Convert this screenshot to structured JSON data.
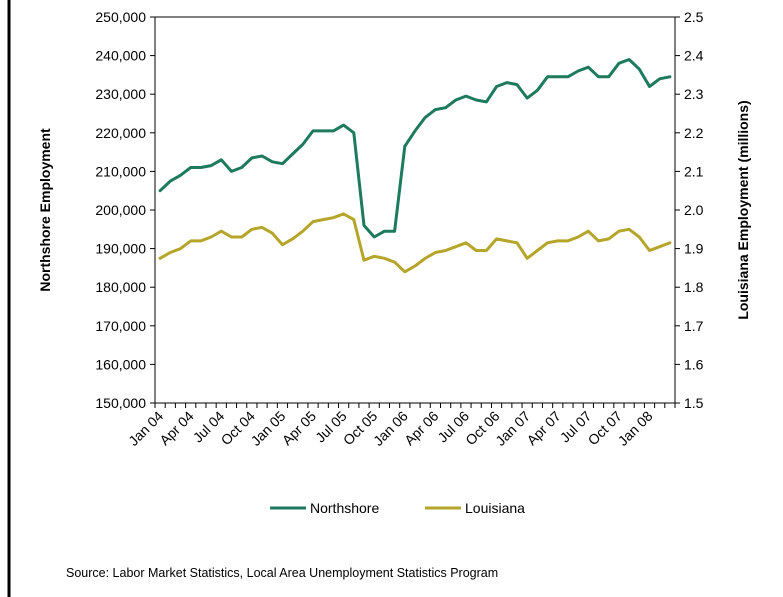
{
  "chart_data": {
    "type": "line",
    "x": [
      "Jan 04",
      "Feb 04",
      "Mar 04",
      "Apr 04",
      "May 04",
      "Jun 04",
      "Jul 04",
      "Aug 04",
      "Sep 04",
      "Oct 04",
      "Nov 04",
      "Dec 04",
      "Jan 05",
      "Feb 05",
      "Mar 05",
      "Apr 05",
      "May 05",
      "Jun 05",
      "Jul 05",
      "Aug 05",
      "Sep 05",
      "Oct 05",
      "Nov 05",
      "Dec 05",
      "Jan 06",
      "Feb 06",
      "Mar 06",
      "Apr 06",
      "May 06",
      "Jun 06",
      "Jul 06",
      "Aug 06",
      "Sep 06",
      "Oct 06",
      "Nov 06",
      "Dec 06",
      "Jan 07",
      "Feb 07",
      "Mar 07",
      "Apr 07",
      "May 07",
      "Jun 07",
      "Jul 07",
      "Aug 07",
      "Sep 07",
      "Oct 07",
      "Nov 07",
      "Dec 07",
      "Jan 08",
      "Feb 08",
      "Mar 08"
    ],
    "x_tick_labels": [
      "Jan 04",
      "Apr 04",
      "Jul 04",
      "Oct 04",
      "Jan 05",
      "Apr 05",
      "Jul 05",
      "Oct 05",
      "Jan 06",
      "Apr 06",
      "Jul 06",
      "Oct 06",
      "Jan 07",
      "Apr 07",
      "Jul 07",
      "Oct 07",
      "Jan 08"
    ],
    "series": [
      {
        "name": "Northshore",
        "axis": "left",
        "color": "#1d7a5c",
        "values": [
          205000,
          207500,
          209000,
          211000,
          211000,
          211500,
          213000,
          210000,
          211000,
          213500,
          214000,
          212500,
          212000,
          214500,
          217000,
          220500,
          220500,
          220500,
          222000,
          220000,
          196000,
          193000,
          194500,
          194500,
          216500,
          220500,
          224000,
          226000,
          226500,
          228500,
          229500,
          228500,
          228000,
          232000,
          233000,
          232500,
          229000,
          231000,
          234500,
          234500,
          234500,
          236000,
          237000,
          234500,
          234500,
          238000,
          239000,
          236500,
          232000,
          234000,
          234500
        ]
      },
      {
        "name": "Louisiana",
        "axis": "right",
        "color": "#b5a52a",
        "values": [
          1.875,
          1.89,
          1.9,
          1.92,
          1.92,
          1.93,
          1.945,
          1.93,
          1.93,
          1.95,
          1.955,
          1.94,
          1.91,
          1.925,
          1.945,
          1.97,
          1.975,
          1.98,
          1.99,
          1.975,
          1.87,
          1.88,
          1.875,
          1.865,
          1.84,
          1.855,
          1.875,
          1.89,
          1.895,
          1.905,
          1.915,
          1.895,
          1.895,
          1.925,
          1.92,
          1.915,
          1.875,
          1.895,
          1.915,
          1.92,
          1.92,
          1.93,
          1.945,
          1.92,
          1.925,
          1.945,
          1.95,
          1.93,
          1.895,
          1.905,
          1.915
        ]
      }
    ],
    "y_left": {
      "label": "Northshore Employment",
      "ylim": [
        150000,
        250000
      ],
      "ticks": [
        "150,000",
        "160,000",
        "170,000",
        "180,000",
        "190,000",
        "200,000",
        "210,000",
        "220,000",
        "230,000",
        "240,000",
        "250,000"
      ]
    },
    "y_right": {
      "label": "Louisiana Employment (millions)",
      "ylim": [
        1.5,
        2.5
      ],
      "ticks": [
        "1.5",
        "1.6",
        "1.7",
        "1.8",
        "1.9",
        "2.0",
        "2.1",
        "2.2",
        "2.3",
        "2.4",
        "2.5"
      ]
    },
    "legend_position": "bottom",
    "grid": false
  },
  "source_text": "Source:  Labor Market Statistics, Local Area Unemployment  Statistics Program"
}
